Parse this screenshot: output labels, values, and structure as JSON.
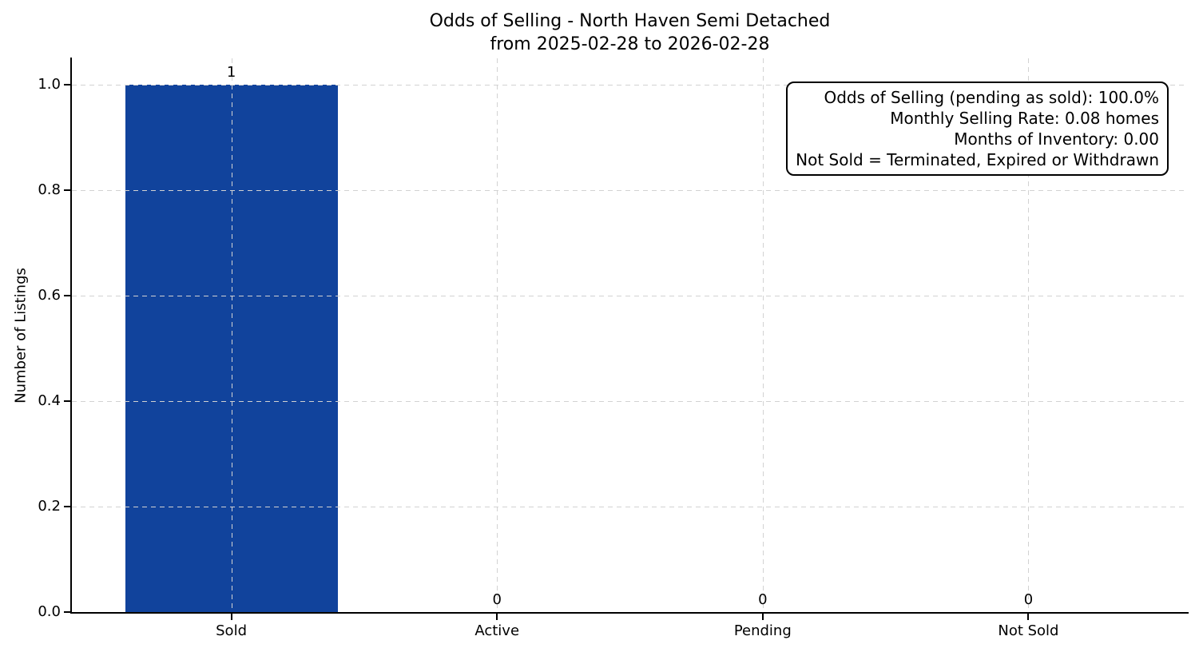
{
  "chart_data": {
    "type": "bar",
    "title": "Odds of Selling - North Haven Semi Detached",
    "subtitle": "from 2025-02-28 to 2026-02-28",
    "categories": [
      "Sold",
      "Active",
      "Pending",
      "Not Sold"
    ],
    "values": [
      1,
      0,
      0,
      0
    ],
    "bar_labels": [
      "1",
      "0",
      "0",
      "0"
    ],
    "xlabel": "",
    "ylabel": "Number of Listings",
    "ylim": [
      0,
      1.05
    ],
    "yticks": [
      0.0,
      0.2,
      0.4,
      0.6,
      0.8,
      1.0
    ],
    "ytick_labels": [
      "0.0",
      "0.2",
      "0.4",
      "0.6",
      "0.8",
      "1.0"
    ],
    "grid": true,
    "grid_style": "dashed",
    "legend_position": "none",
    "bar_color": "#11439c",
    "text_color": "#000000",
    "grid_color": "#d2d2d2",
    "annotation_box": {
      "lines": [
        "Odds of Selling (pending as sold): 100.0%",
        "Monthly Selling Rate: 0.08 homes",
        "Months of Inventory: 0.00",
        "Not Sold = Terminated, Expired or Withdrawn"
      ],
      "odds_of_selling": "100.0%",
      "monthly_selling_rate": "0.08 homes",
      "months_of_inventory": "0.00"
    }
  }
}
